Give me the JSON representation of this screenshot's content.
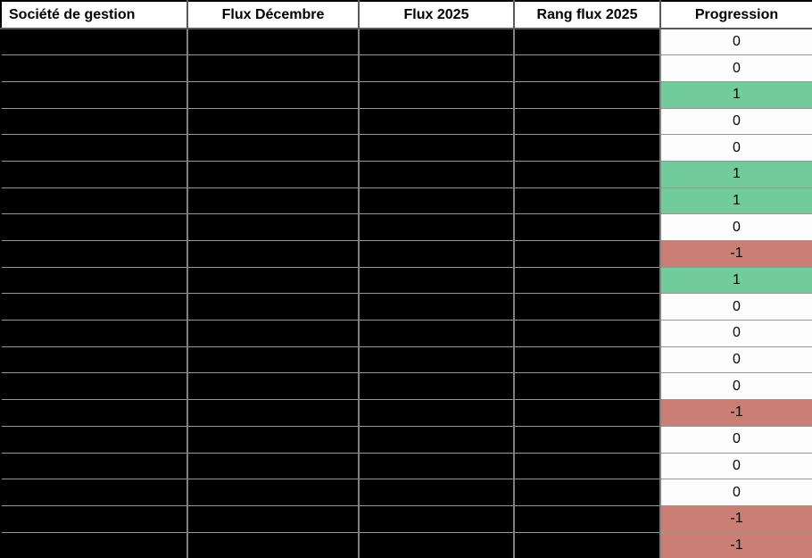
{
  "table": {
    "columns": [
      {
        "id": "societe_de_gestion",
        "label": "Société de gestion"
      },
      {
        "id": "flux_decembre",
        "label": "Flux Décembre"
      },
      {
        "id": "flux_2025",
        "label": "Flux 2025"
      },
      {
        "id": "rang_flux_2025",
        "label": "Rang flux 2025"
      },
      {
        "id": "progression",
        "label": "Progression"
      }
    ],
    "redaction": {
      "columns": [
        "societe_de_gestion",
        "flux_decembre",
        "flux_2025",
        "rang_flux_2025"
      ],
      "style": "blacked_out"
    },
    "rows": [
      {
        "progression": 0
      },
      {
        "progression": 0
      },
      {
        "progression": 1
      },
      {
        "progression": 0
      },
      {
        "progression": 0
      },
      {
        "progression": 1
      },
      {
        "progression": 1
      },
      {
        "progression": 0
      },
      {
        "progression": -1
      },
      {
        "progression": 1
      },
      {
        "progression": 0
      },
      {
        "progression": 0
      },
      {
        "progression": 0
      },
      {
        "progression": 0
      },
      {
        "progression": -1
      },
      {
        "progression": 0
      },
      {
        "progression": 0
      },
      {
        "progression": 0
      },
      {
        "progression": -1
      },
      {
        "progression": -1
      }
    ]
  },
  "colors": {
    "progression_positive_bg": "#71CB9A",
    "progression_negative_bg": "#CB7E73",
    "progression_zero_bg": "#FDFDFD",
    "redacted_cell_bg": "#000000",
    "grid_border": "#808080",
    "header_border": "#595959",
    "outer_border": "#000000"
  }
}
